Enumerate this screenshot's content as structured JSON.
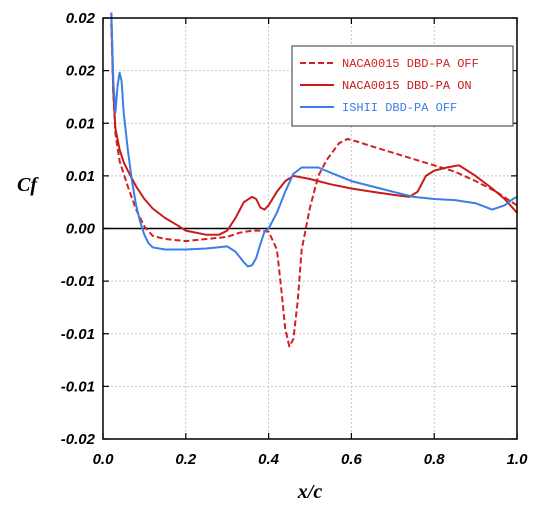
{
  "chart_data": {
    "type": "line",
    "title": "",
    "xlabel": "x/c",
    "ylabel": "Cf",
    "xlim": [
      0.0,
      1.0
    ],
    "ylim": [
      -0.02,
      0.02
    ],
    "grid": true,
    "legend_position": "top-right",
    "xticks": [
      0.0,
      0.2,
      0.4,
      0.6,
      0.8,
      1.0
    ],
    "xtick_labels": [
      "0.0",
      "0.2",
      "0.4",
      "0.6",
      "0.8",
      "1.0"
    ],
    "yticks": [
      -0.02,
      -0.015,
      -0.01,
      -0.005,
      0.0,
      0.005,
      0.01,
      0.015,
      0.02
    ],
    "ytick_labels": [
      "-0.02",
      "-0.01",
      "-0.01",
      "-0.01",
      "0.00",
      "0.01",
      "0.01",
      "0.02",
      "0.02"
    ],
    "zero_line": 0.0,
    "series": [
      {
        "name": "NACA0015 DBD-PA OFF",
        "color": "#d42020",
        "dash": "dashed",
        "points": [
          [
            0.02,
            0.0195
          ],
          [
            0.025,
            0.013
          ],
          [
            0.03,
            0.009
          ],
          [
            0.04,
            0.0064
          ],
          [
            0.06,
            0.004
          ],
          [
            0.08,
            0.0018
          ],
          [
            0.1,
            0.0002
          ],
          [
            0.12,
            -0.0007
          ],
          [
            0.15,
            -0.001
          ],
          [
            0.2,
            -0.0012
          ],
          [
            0.25,
            -0.001
          ],
          [
            0.3,
            -0.0008
          ],
          [
            0.33,
            -0.0004
          ],
          [
            0.36,
            -0.0002
          ],
          [
            0.38,
            -0.0002
          ],
          [
            0.4,
            -0.0003
          ],
          [
            0.42,
            -0.002
          ],
          [
            0.43,
            -0.0055
          ],
          [
            0.44,
            -0.0095
          ],
          [
            0.45,
            -0.0112
          ],
          [
            0.46,
            -0.0105
          ],
          [
            0.47,
            -0.007
          ],
          [
            0.48,
            -0.002
          ],
          [
            0.5,
            0.002
          ],
          [
            0.52,
            0.005
          ],
          [
            0.54,
            0.0065
          ],
          [
            0.57,
            0.0081
          ],
          [
            0.59,
            0.0085
          ],
          [
            0.61,
            0.0083
          ],
          [
            0.65,
            0.0078
          ],
          [
            0.7,
            0.0072
          ],
          [
            0.75,
            0.0066
          ],
          [
            0.8,
            0.006
          ],
          [
            0.85,
            0.0054
          ],
          [
            0.9,
            0.0045
          ],
          [
            0.95,
            0.0035
          ],
          [
            0.98,
            0.0027
          ],
          [
            1.0,
            0.0022
          ]
        ]
      },
      {
        "name": "NACA0015 DBD-PA ON",
        "color": "#c81c1c",
        "dash": "solid",
        "points": [
          [
            0.02,
            0.0205
          ],
          [
            0.025,
            0.013
          ],
          [
            0.03,
            0.0095
          ],
          [
            0.04,
            0.0075
          ],
          [
            0.05,
            0.0063
          ],
          [
            0.06,
            0.0055
          ],
          [
            0.08,
            0.004
          ],
          [
            0.1,
            0.0028
          ],
          [
            0.12,
            0.0019
          ],
          [
            0.15,
            0.001
          ],
          [
            0.18,
            0.0003
          ],
          [
            0.2,
            -0.0002
          ],
          [
            0.25,
            -0.0006
          ],
          [
            0.28,
            -0.0006
          ],
          [
            0.3,
            -0.0002
          ],
          [
            0.32,
            0.001
          ],
          [
            0.34,
            0.0025
          ],
          [
            0.36,
            0.003
          ],
          [
            0.37,
            0.0028
          ],
          [
            0.38,
            0.002
          ],
          [
            0.39,
            0.0018
          ],
          [
            0.4,
            0.0022
          ],
          [
            0.42,
            0.0035
          ],
          [
            0.44,
            0.0045
          ],
          [
            0.46,
            0.005
          ],
          [
            0.5,
            0.0047
          ],
          [
            0.55,
            0.0042
          ],
          [
            0.6,
            0.0038
          ],
          [
            0.65,
            0.0035
          ],
          [
            0.7,
            0.0032
          ],
          [
            0.74,
            0.003
          ],
          [
            0.76,
            0.0035
          ],
          [
            0.78,
            0.005
          ],
          [
            0.8,
            0.0055
          ],
          [
            0.83,
            0.0058
          ],
          [
            0.86,
            0.006
          ],
          [
            0.9,
            0.005
          ],
          [
            0.94,
            0.0038
          ],
          [
            0.97,
            0.0028
          ],
          [
            1.0,
            0.0015
          ]
        ]
      },
      {
        "name": "ISHII DBD-PA OFF",
        "color": "#3a7ee8",
        "dash": "solid",
        "points": [
          [
            0.02,
            0.0205
          ],
          [
            0.025,
            0.014
          ],
          [
            0.03,
            0.011
          ],
          [
            0.035,
            0.0135
          ],
          [
            0.04,
            0.0148
          ],
          [
            0.045,
            0.014
          ],
          [
            0.05,
            0.011
          ],
          [
            0.06,
            0.0075
          ],
          [
            0.07,
            0.0045
          ],
          [
            0.08,
            0.0022
          ],
          [
            0.09,
            0.0006
          ],
          [
            0.1,
            -0.0006
          ],
          [
            0.11,
            -0.0014
          ],
          [
            0.12,
            -0.0018
          ],
          [
            0.15,
            -0.002
          ],
          [
            0.2,
            -0.002
          ],
          [
            0.25,
            -0.0019
          ],
          [
            0.3,
            -0.0017
          ],
          [
            0.32,
            -0.0022
          ],
          [
            0.34,
            -0.0032
          ],
          [
            0.35,
            -0.0036
          ],
          [
            0.36,
            -0.0035
          ],
          [
            0.37,
            -0.0028
          ],
          [
            0.38,
            -0.0015
          ],
          [
            0.39,
            -0.0003
          ],
          [
            0.4,
            0.0
          ],
          [
            0.42,
            0.0015
          ],
          [
            0.44,
            0.0035
          ],
          [
            0.46,
            0.0052
          ],
          [
            0.48,
            0.0058
          ],
          [
            0.5,
            0.0058
          ],
          [
            0.52,
            0.0058
          ],
          [
            0.55,
            0.0053
          ],
          [
            0.6,
            0.0045
          ],
          [
            0.65,
            0.004
          ],
          [
            0.7,
            0.0035
          ],
          [
            0.75,
            0.003
          ],
          [
            0.8,
            0.0028
          ],
          [
            0.85,
            0.0027
          ],
          [
            0.9,
            0.0024
          ],
          [
            0.94,
            0.0018
          ],
          [
            0.97,
            0.0022
          ],
          [
            0.99,
            0.0028
          ],
          [
            1.0,
            0.003
          ]
        ]
      }
    ]
  }
}
